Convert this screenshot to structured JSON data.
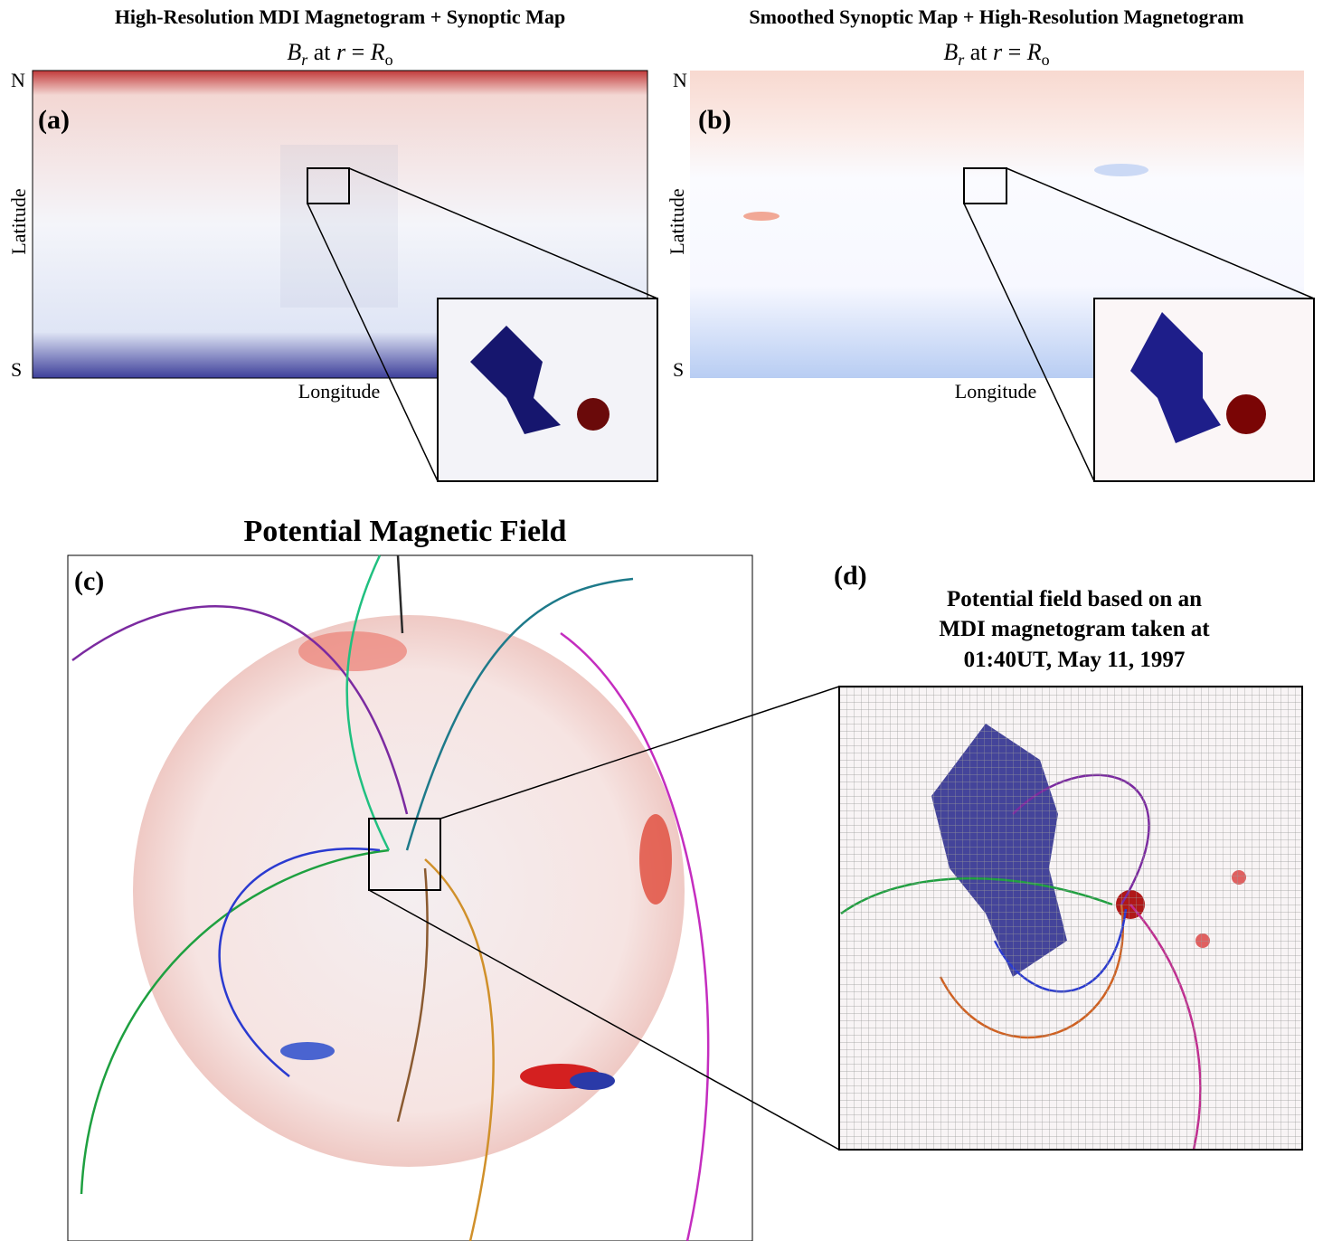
{
  "panel_a": {
    "title": "High-Resolution MDI Magnetogram + Synoptic Map",
    "subtitle": [
      "B",
      "r",
      "at",
      "r",
      "=",
      "R",
      "o"
    ],
    "label": "(a)",
    "north": "N",
    "south": "S",
    "y_label": "Latitude",
    "x_label": "Longitude"
  },
  "panel_b": {
    "title": "Smoothed Synoptic Map + High-Resolution Magnetogram",
    "subtitle": [
      "B",
      "r",
      "at",
      "r",
      "=",
      "R",
      "o"
    ],
    "label": "(b)",
    "north": "N",
    "south": "S",
    "y_label": "Latitude",
    "x_label": "Longitude"
  },
  "panel_c": {
    "title": "Potential Magnetic Field",
    "label": "(c)"
  },
  "panel_d": {
    "label": "(d)",
    "caption": [
      "Potential field based on an",
      "MDI magnetogram taken at",
      "01:40UT, May 11, 1997"
    ]
  }
}
